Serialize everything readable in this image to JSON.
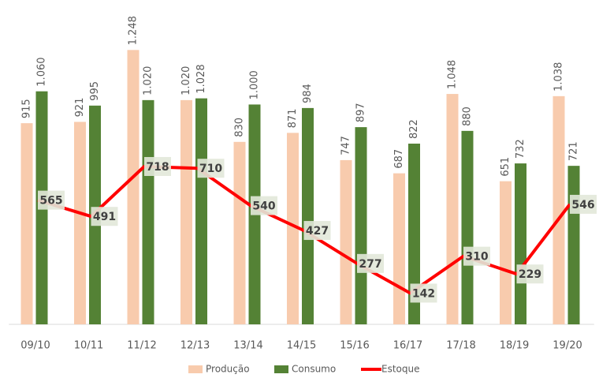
{
  "chart_data": {
    "type": "bar_line",
    "categories": [
      "09/10",
      "10/11",
      "11/12",
      "12/13",
      "13/14",
      "14/15",
      "15/16",
      "16/17",
      "17/18",
      "18/19",
      "19/20"
    ],
    "series": [
      {
        "name": "Produção",
        "type": "bar",
        "color": "#f8cbad",
        "values": [
          915,
          921,
          1248,
          1020,
          830,
          871,
          747,
          687,
          1048,
          651,
          1038
        ],
        "value_labels": [
          "915",
          "921",
          "1.248",
          "1.020",
          "830",
          "871",
          "747",
          "687",
          "1.048",
          "651",
          "1.038"
        ]
      },
      {
        "name": "Consumo",
        "type": "bar",
        "color": "#548235",
        "values": [
          1060,
          995,
          1020,
          1028,
          1000,
          984,
          897,
          822,
          880,
          732,
          721
        ],
        "value_labels": [
          "1.060",
          "995",
          "1.020",
          "1.028",
          "1.000",
          "984",
          "897",
          "822",
          "880",
          "732",
          "721"
        ]
      },
      {
        "name": "Estoque",
        "type": "line",
        "color": "#ff0000",
        "values": [
          565,
          491,
          718,
          710,
          540,
          427,
          277,
          142,
          310,
          229,
          546
        ]
      }
    ],
    "ylim": [
      0,
      1400
    ]
  }
}
